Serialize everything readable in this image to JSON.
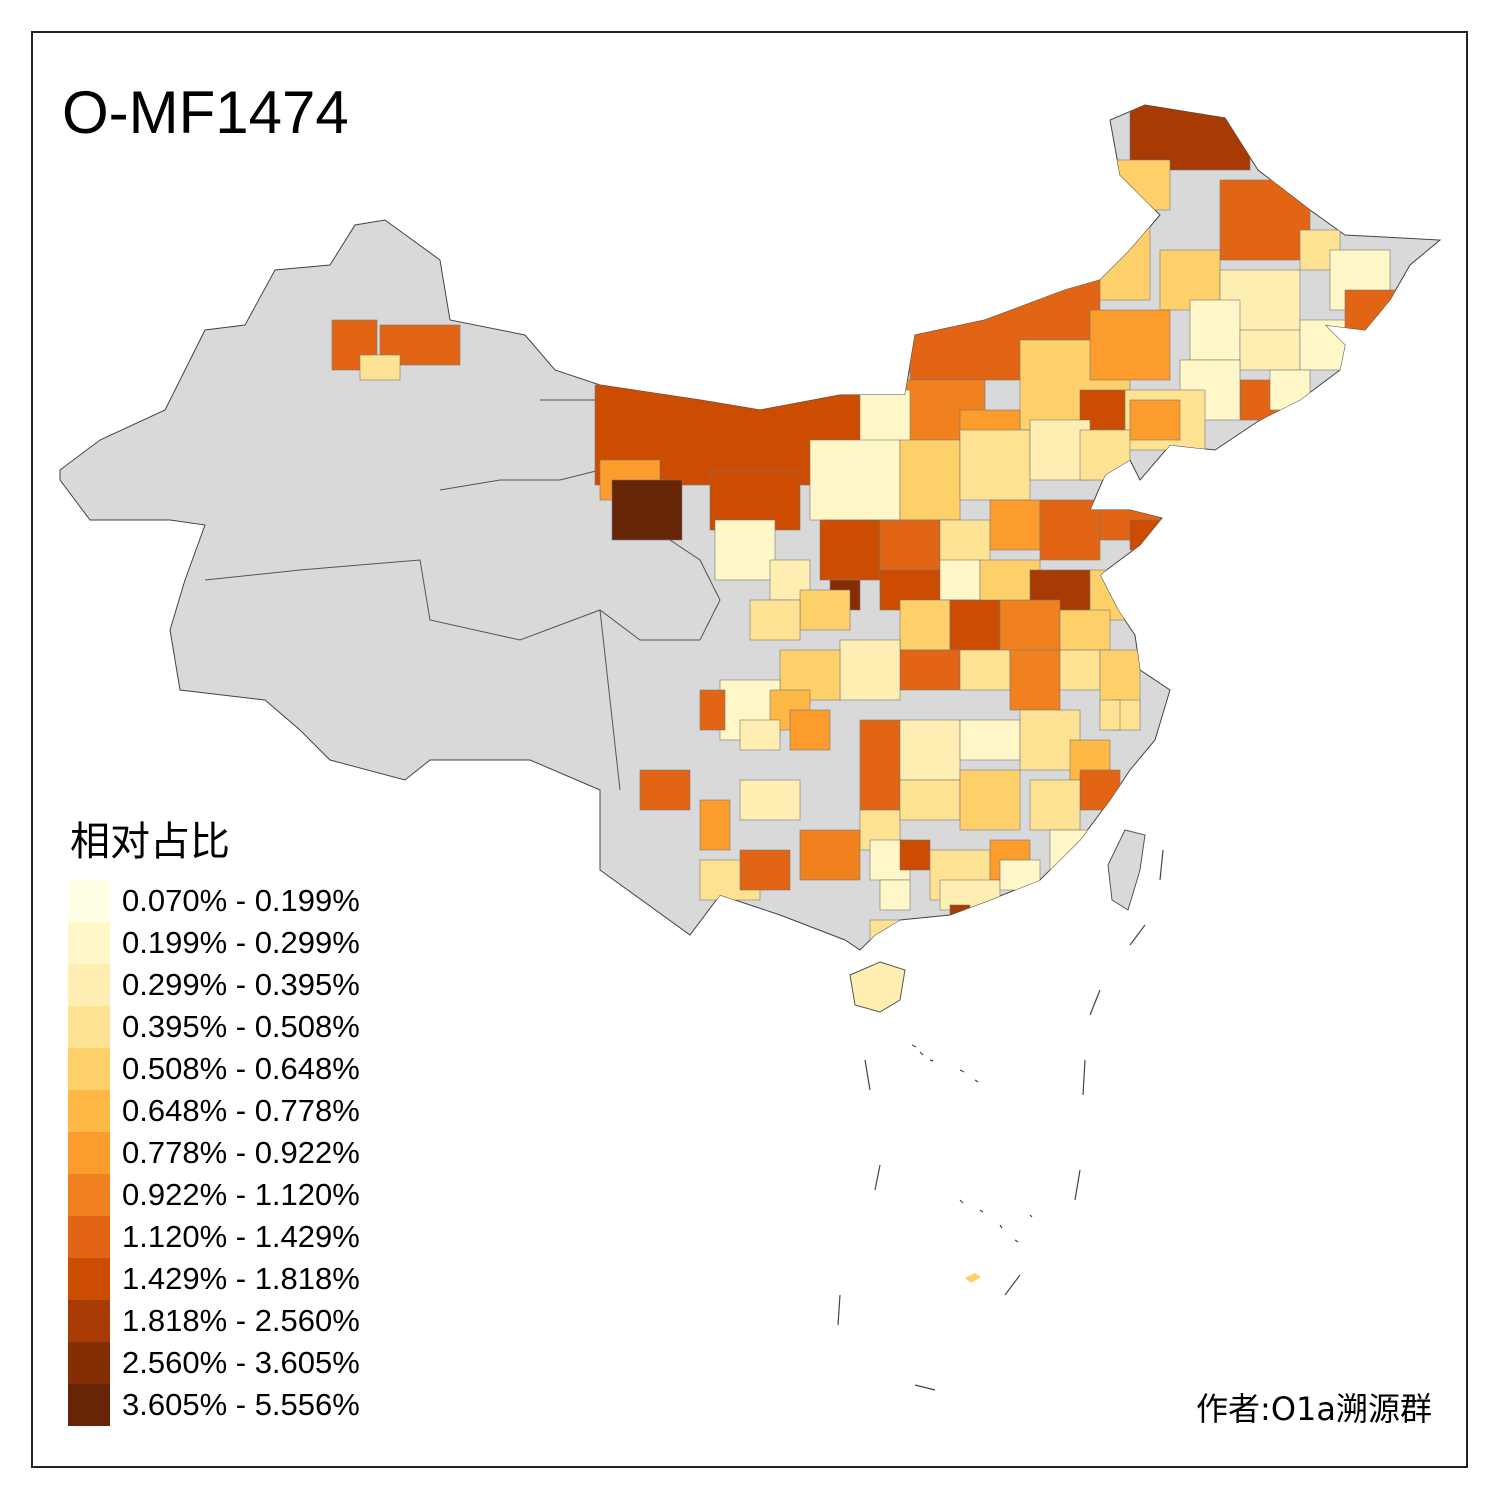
{
  "title": "O-MF1474",
  "legend": {
    "title": "相对占比",
    "items": [
      {
        "label": "0.070% - 0.199%",
        "color": "#FFFFE5"
      },
      {
        "label": "0.199% - 0.299%",
        "color": "#FFF7C8"
      },
      {
        "label": "0.299% - 0.395%",
        "color": "#FEEEB2"
      },
      {
        "label": "0.395% - 0.508%",
        "color": "#FEE294"
      },
      {
        "label": "0.508% - 0.648%",
        "color": "#FED06A"
      },
      {
        "label": "0.648% - 0.778%",
        "color": "#FEB846"
      },
      {
        "label": "0.778% - 0.922%",
        "color": "#FB9C2C"
      },
      {
        "label": "0.922% - 1.120%",
        "color": "#F1811E"
      },
      {
        "label": "1.120% - 1.429%",
        "color": "#E16514"
      },
      {
        "label": "1.429% - 1.818%",
        "color": "#CC4C02"
      },
      {
        "label": "1.818% - 2.560%",
        "color": "#A83A04"
      },
      {
        "label": "2.560% - 3.605%",
        "color": "#852E05"
      },
      {
        "label": "3.605% - 5.556%",
        "color": "#662506"
      }
    ]
  },
  "no_data_color": "#D9D9D9",
  "author": "作者:O1a溯源群"
}
